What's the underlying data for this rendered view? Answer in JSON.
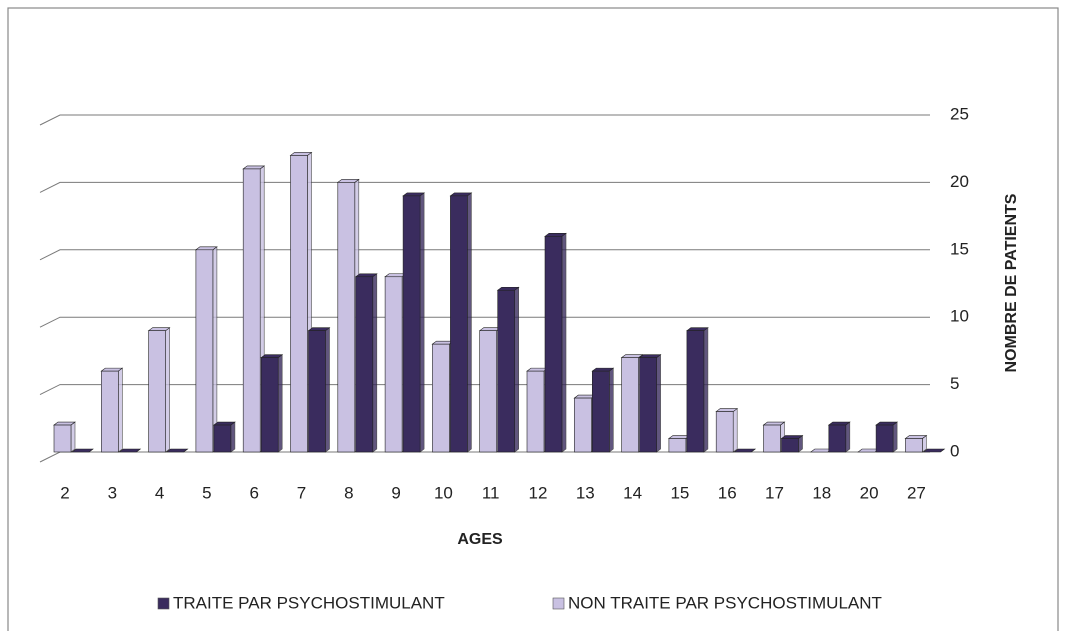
{
  "chart_data": {
    "type": "bar",
    "x_label": "AGES",
    "y_label": "NOMBRE DE PATIENTS",
    "categories": [
      "2",
      "3",
      "4",
      "5",
      "6",
      "7",
      "8",
      "9",
      "10",
      "11",
      "12",
      "13",
      "14",
      "15",
      "16",
      "17",
      "18",
      "20",
      "27"
    ],
    "series": [
      {
        "name": "TRAITE PAR PSYCHOSTIMULANT",
        "color": "#3a2c5e",
        "values": [
          0,
          0,
          0,
          2,
          7,
          9,
          13,
          19,
          19,
          12,
          16,
          6,
          7,
          9,
          0,
          1,
          2,
          2,
          0
        ]
      },
      {
        "name": "NON TRAITE PAR PSYCHOSTIMULANT",
        "color": "#c9c1e2",
        "values": [
          2,
          6,
          9,
          15,
          21,
          22,
          20,
          13,
          8,
          9,
          6,
          4,
          7,
          1,
          3,
          2,
          0,
          0,
          1
        ]
      }
    ],
    "ylim": [
      0,
      25
    ],
    "yticks": [
      0,
      5,
      10,
      15,
      20,
      25
    ],
    "grid": true,
    "legend": "bottom"
  }
}
